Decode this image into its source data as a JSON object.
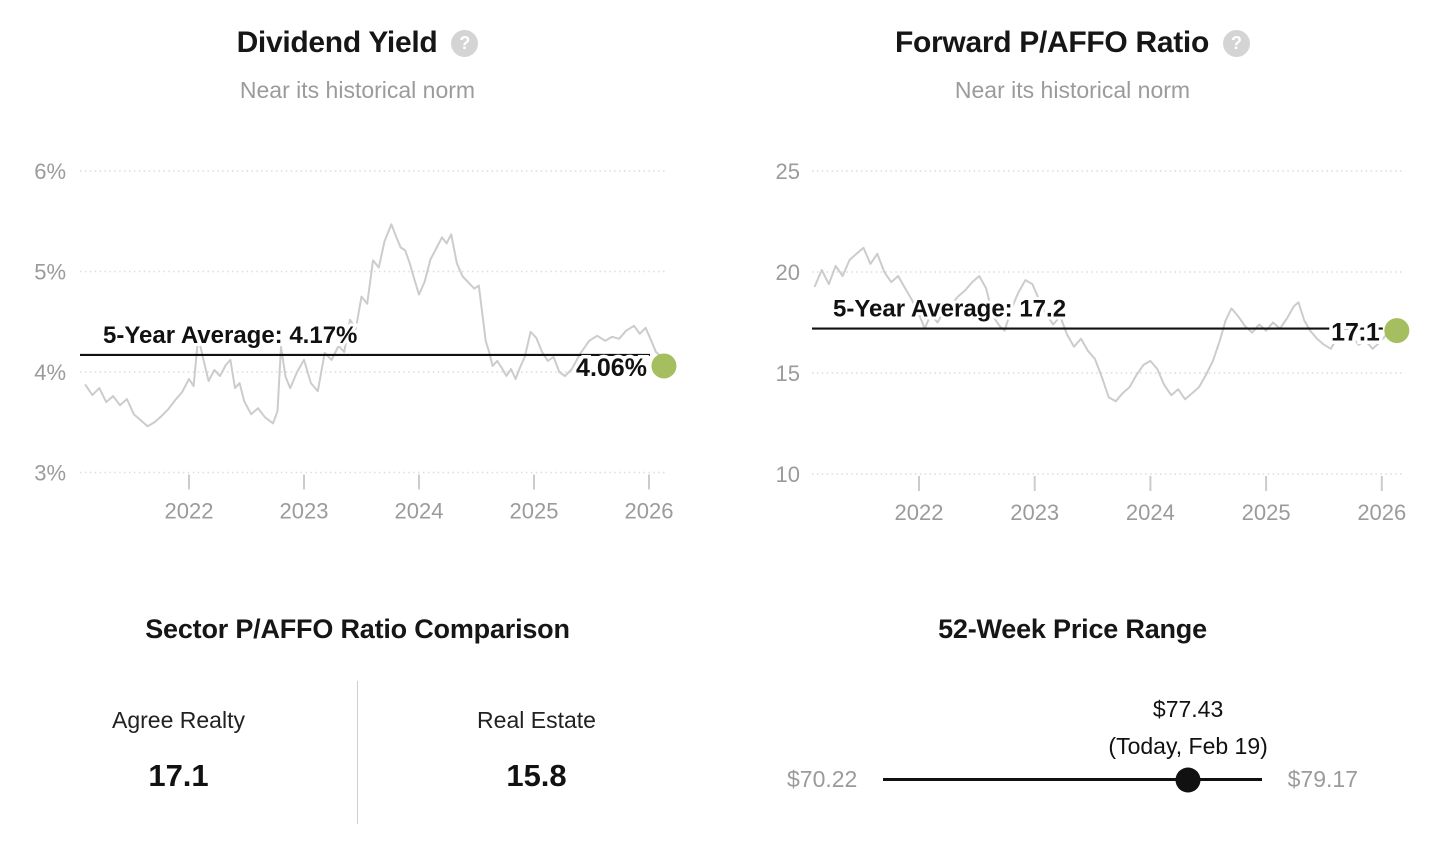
{
  "colors": {
    "series_gray": "#cccccc",
    "average_line_black": "#111111",
    "current_marker_green": "#a5be60",
    "axis_label_gray": "#9b9b9b",
    "title_black": "#161616",
    "muted_gray": "#9b9b9b"
  },
  "chart_data": [
    {
      "type": "line",
      "title": "Dividend Yield",
      "subtitle": "Near its historical norm",
      "help_glyph": "?",
      "xlabel": "",
      "ylabel": "",
      "x_range": [
        2021.1,
        2026.25
      ],
      "ylim": [
        3,
        6
      ],
      "grid": "dotted-horizontal",
      "legend": "none",
      "y_ticks": [
        {
          "value": 6,
          "label": "6%"
        },
        {
          "value": 5,
          "label": "5%"
        },
        {
          "value": 4,
          "label": "4%"
        },
        {
          "value": 3,
          "label": "3%"
        }
      ],
      "x_ticks": [
        {
          "value": 2022,
          "label": "2022"
        },
        {
          "value": 2023,
          "label": "2023"
        },
        {
          "value": 2024,
          "label": "2024"
        },
        {
          "value": 2025,
          "label": "2025"
        },
        {
          "value": 2026,
          "label": "2026"
        }
      ],
      "average": {
        "value": 4.17,
        "label": "5-Year Average: 4.17%",
        "line_color": "#111111"
      },
      "current": {
        "x": 2026.13,
        "value": 4.06,
        "label": "4.06%",
        "marker_color": "#a5be60"
      },
      "series": [
        {
          "name": "Dividend Yield",
          "color": "#cccccc",
          "points": [
            [
              2021.1,
              3.87
            ],
            [
              2021.16,
              3.77
            ],
            [
              2021.22,
              3.84
            ],
            [
              2021.28,
              3.7
            ],
            [
              2021.34,
              3.76
            ],
            [
              2021.4,
              3.67
            ],
            [
              2021.46,
              3.73
            ],
            [
              2021.52,
              3.58
            ],
            [
              2021.58,
              3.52
            ],
            [
              2021.64,
              3.46
            ],
            [
              2021.7,
              3.5
            ],
            [
              2021.76,
              3.56
            ],
            [
              2021.82,
              3.63
            ],
            [
              2021.88,
              3.72
            ],
            [
              2021.94,
              3.8
            ],
            [
              2022.0,
              3.93
            ],
            [
              2022.04,
              3.86
            ],
            [
              2022.08,
              4.35
            ],
            [
              2022.13,
              4.1
            ],
            [
              2022.17,
              3.91
            ],
            [
              2022.22,
              4.02
            ],
            [
              2022.27,
              3.96
            ],
            [
              2022.32,
              4.07
            ],
            [
              2022.36,
              4.12
            ],
            [
              2022.4,
              3.84
            ],
            [
              2022.44,
              3.89
            ],
            [
              2022.48,
              3.71
            ],
            [
              2022.54,
              3.58
            ],
            [
              2022.6,
              3.64
            ],
            [
              2022.66,
              3.55
            ],
            [
              2022.73,
              3.49
            ],
            [
              2022.77,
              3.61
            ],
            [
              2022.8,
              4.25
            ],
            [
              2022.84,
              3.95
            ],
            [
              2022.88,
              3.84
            ],
            [
              2022.94,
              4.0
            ],
            [
              2023.0,
              4.12
            ],
            [
              2023.06,
              3.89
            ],
            [
              2023.12,
              3.81
            ],
            [
              2023.18,
              4.19
            ],
            [
              2023.24,
              4.12
            ],
            [
              2023.3,
              4.26
            ],
            [
              2023.35,
              4.2
            ],
            [
              2023.4,
              4.52
            ],
            [
              2023.45,
              4.43
            ],
            [
              2023.5,
              4.75
            ],
            [
              2023.55,
              4.68
            ],
            [
              2023.6,
              5.11
            ],
            [
              2023.65,
              5.04
            ],
            [
              2023.7,
              5.3
            ],
            [
              2023.76,
              5.47
            ],
            [
              2023.8,
              5.35
            ],
            [
              2023.84,
              5.24
            ],
            [
              2023.88,
              5.21
            ],
            [
              2023.92,
              5.08
            ],
            [
              2023.96,
              4.92
            ],
            [
              2024.0,
              4.77
            ],
            [
              2024.05,
              4.9
            ],
            [
              2024.1,
              5.12
            ],
            [
              2024.15,
              5.23
            ],
            [
              2024.2,
              5.34
            ],
            [
              2024.24,
              5.28
            ],
            [
              2024.28,
              5.37
            ],
            [
              2024.33,
              5.08
            ],
            [
              2024.38,
              4.95
            ],
            [
              2024.43,
              4.89
            ],
            [
              2024.48,
              4.83
            ],
            [
              2024.52,
              4.86
            ],
            [
              2024.55,
              4.59
            ],
            [
              2024.58,
              4.31
            ],
            [
              2024.61,
              4.2
            ],
            [
              2024.64,
              4.06
            ],
            [
              2024.68,
              4.11
            ],
            [
              2024.72,
              4.04
            ],
            [
              2024.76,
              3.96
            ],
            [
              2024.8,
              4.03
            ],
            [
              2024.84,
              3.93
            ],
            [
              2024.88,
              4.05
            ],
            [
              2024.92,
              4.15
            ],
            [
              2024.97,
              4.4
            ],
            [
              2025.02,
              4.34
            ],
            [
              2025.07,
              4.2
            ],
            [
              2025.12,
              4.11
            ],
            [
              2025.17,
              4.15
            ],
            [
              2025.22,
              4.0
            ],
            [
              2025.27,
              3.96
            ],
            [
              2025.33,
              4.03
            ],
            [
              2025.4,
              4.18
            ],
            [
              2025.48,
              4.31
            ],
            [
              2025.55,
              4.36
            ],
            [
              2025.62,
              4.31
            ],
            [
              2025.68,
              4.35
            ],
            [
              2025.74,
              4.33
            ],
            [
              2025.8,
              4.41
            ],
            [
              2025.87,
              4.46
            ],
            [
              2025.92,
              4.38
            ],
            [
              2025.97,
              4.44
            ],
            [
              2026.02,
              4.31
            ],
            [
              2026.06,
              4.2
            ],
            [
              2026.09,
              4.17
            ],
            [
              2026.13,
              4.06
            ]
          ]
        }
      ]
    },
    {
      "type": "line",
      "title": "Forward P/AFFO Ratio",
      "subtitle": "Near its historical norm",
      "help_glyph": "?",
      "xlabel": "",
      "ylabel": "",
      "x_range": [
        2021.1,
        2026.25
      ],
      "ylim": [
        10,
        25
      ],
      "grid": "dotted-horizontal",
      "legend": "none",
      "y_ticks": [
        {
          "value": 25,
          "label": "25"
        },
        {
          "value": 20,
          "label": "20"
        },
        {
          "value": 15,
          "label": "15"
        },
        {
          "value": 10,
          "label": "10"
        }
      ],
      "x_ticks": [
        {
          "value": 2022,
          "label": "2022"
        },
        {
          "value": 2023,
          "label": "2023"
        },
        {
          "value": 2024,
          "label": "2024"
        },
        {
          "value": 2025,
          "label": "2025"
        },
        {
          "value": 2026,
          "label": "2026"
        }
      ],
      "average": {
        "value": 17.2,
        "label": "5-Year Average: 17.2",
        "line_color": "#111111"
      },
      "current": {
        "x": 2026.13,
        "value": 17.1,
        "label": "17.1",
        "marker_color": "#a5be60"
      },
      "series": [
        {
          "name": "Forward P/AFFO Ratio",
          "color": "#cccccc",
          "points": [
            [
              2021.1,
              19.3
            ],
            [
              2021.16,
              20.1
            ],
            [
              2021.22,
              19.4
            ],
            [
              2021.28,
              20.3
            ],
            [
              2021.34,
              19.8
            ],
            [
              2021.4,
              20.6
            ],
            [
              2021.46,
              20.9
            ],
            [
              2021.52,
              21.2
            ],
            [
              2021.58,
              20.4
            ],
            [
              2021.64,
              20.9
            ],
            [
              2021.7,
              20.0
            ],
            [
              2021.76,
              19.5
            ],
            [
              2021.82,
              19.8
            ],
            [
              2021.88,
              19.2
            ],
            [
              2021.94,
              18.6
            ],
            [
              2022.0,
              17.9
            ],
            [
              2022.05,
              17.2
            ],
            [
              2022.1,
              17.9
            ],
            [
              2022.16,
              17.5
            ],
            [
              2022.22,
              18.1
            ],
            [
              2022.28,
              18.4
            ],
            [
              2022.34,
              18.8
            ],
            [
              2022.4,
              19.1
            ],
            [
              2022.46,
              19.5
            ],
            [
              2022.52,
              19.8
            ],
            [
              2022.58,
              19.2
            ],
            [
              2022.64,
              17.8
            ],
            [
              2022.7,
              17.3
            ],
            [
              2022.74,
              17.1
            ],
            [
              2022.8,
              18.2
            ],
            [
              2022.86,
              19.0
            ],
            [
              2022.92,
              19.6
            ],
            [
              2022.98,
              19.4
            ],
            [
              2023.04,
              18.6
            ],
            [
              2023.1,
              17.9
            ],
            [
              2023.16,
              17.4
            ],
            [
              2023.22,
              17.8
            ],
            [
              2023.28,
              16.9
            ],
            [
              2023.34,
              16.3
            ],
            [
              2023.4,
              16.7
            ],
            [
              2023.46,
              16.1
            ],
            [
              2023.52,
              15.7
            ],
            [
              2023.58,
              14.8
            ],
            [
              2023.64,
              13.8
            ],
            [
              2023.7,
              13.6
            ],
            [
              2023.76,
              14.0
            ],
            [
              2023.82,
              14.3
            ],
            [
              2023.88,
              14.9
            ],
            [
              2023.94,
              15.4
            ],
            [
              2024.0,
              15.6
            ],
            [
              2024.06,
              15.2
            ],
            [
              2024.12,
              14.4
            ],
            [
              2024.18,
              13.9
            ],
            [
              2024.24,
              14.2
            ],
            [
              2024.3,
              13.7
            ],
            [
              2024.36,
              14.0
            ],
            [
              2024.42,
              14.3
            ],
            [
              2024.48,
              14.9
            ],
            [
              2024.54,
              15.6
            ],
            [
              2024.6,
              16.6
            ],
            [
              2024.65,
              17.6
            ],
            [
              2024.7,
              18.2
            ],
            [
              2024.76,
              17.8
            ],
            [
              2024.82,
              17.3
            ],
            [
              2024.88,
              17.0
            ],
            [
              2024.94,
              17.4
            ],
            [
              2025.0,
              17.1
            ],
            [
              2025.06,
              17.5
            ],
            [
              2025.12,
              17.2
            ],
            [
              2025.18,
              17.7
            ],
            [
              2025.24,
              18.3
            ],
            [
              2025.28,
              18.5
            ],
            [
              2025.33,
              17.6
            ],
            [
              2025.38,
              17.1
            ],
            [
              2025.44,
              16.7
            ],
            [
              2025.5,
              16.4
            ],
            [
              2025.56,
              16.2
            ],
            [
              2025.62,
              16.8
            ],
            [
              2025.68,
              16.5
            ],
            [
              2025.74,
              16.8
            ],
            [
              2025.8,
              16.4
            ],
            [
              2025.86,
              16.6
            ],
            [
              2025.92,
              16.2
            ],
            [
              2025.98,
              16.5
            ],
            [
              2026.04,
              16.9
            ],
            [
              2026.09,
              16.6
            ],
            [
              2026.13,
              17.1
            ]
          ]
        }
      ]
    },
    {
      "type": "table",
      "title": "Sector P/AFFO Ratio Comparison",
      "columns": [
        "Agree Realty",
        "Real Estate"
      ],
      "values": [
        17.1,
        15.8
      ]
    },
    {
      "type": "range",
      "title": "52-Week Price Range",
      "min": 70.22,
      "max": 79.17,
      "current": 77.43,
      "min_label": "$70.22",
      "max_label": "$79.17",
      "current_label": "$77.43",
      "current_sublabel": "(Today, Feb 19)",
      "marker_color": "#111111"
    }
  ]
}
